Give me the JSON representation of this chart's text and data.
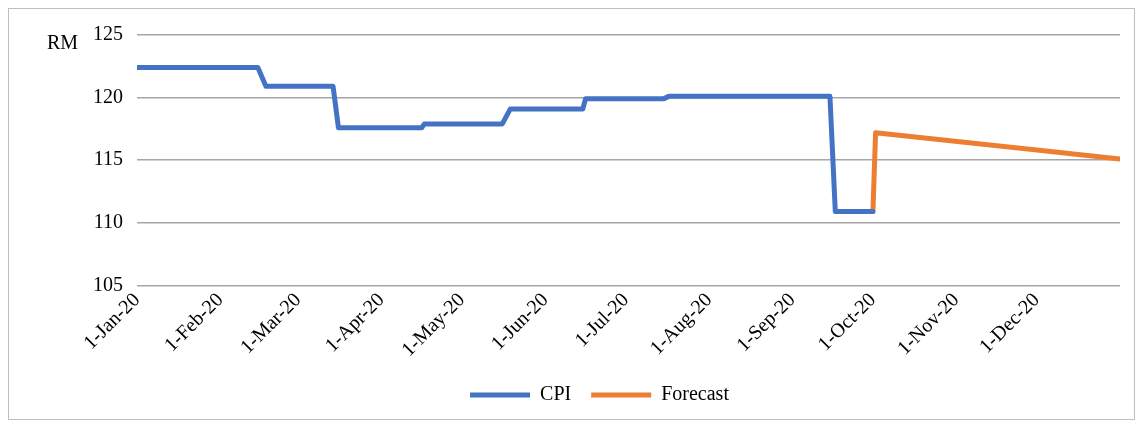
{
  "chart_data": {
    "type": "line",
    "ylabel": "RM",
    "xlim": [
      "2020-01-01",
      "2021-01-01"
    ],
    "xticks": [
      {
        "value": "2020-01-01",
        "label": "1-Jan-20"
      },
      {
        "value": "2020-02-01",
        "label": "1-Feb-20"
      },
      {
        "value": "2020-03-01",
        "label": "1-Mar-20"
      },
      {
        "value": "2020-04-01",
        "label": "1-Apr-20"
      },
      {
        "value": "2020-05-01",
        "label": "1-May-20"
      },
      {
        "value": "2020-06-01",
        "label": "1-Jun-20"
      },
      {
        "value": "2020-07-01",
        "label": "1-Jul-20"
      },
      {
        "value": "2020-08-01",
        "label": "1-Aug-20"
      },
      {
        "value": "2020-09-01",
        "label": "1-Sep-20"
      },
      {
        "value": "2020-10-01",
        "label": "1-Oct-20"
      },
      {
        "value": "2020-11-01",
        "label": "1-Nov-20"
      },
      {
        "value": "2020-12-01",
        "label": "1-Dec-20"
      }
    ],
    "ylim": [
      105,
      125
    ],
    "yticks": [
      105,
      110,
      115,
      120,
      125
    ],
    "grid": "y",
    "legend": "bottom",
    "marker": "none",
    "line_style": "solid",
    "series": [
      {
        "name": "CPI",
        "color": "#4472c4",
        "x": [
          "2020-01-01",
          "2020-02-15",
          "2020-02-18",
          "2020-03-14",
          "2020-03-16",
          "2020-04-16",
          "2020-04-17",
          "2020-05-16",
          "2020-05-19",
          "2020-06-15",
          "2020-06-16",
          "2020-07-15",
          "2020-07-17",
          "2020-09-15",
          "2020-09-17",
          "2020-10-01"
        ],
        "values": [
          122.4,
          122.4,
          120.9,
          120.9,
          117.6,
          117.6,
          117.9,
          117.9,
          119.1,
          119.1,
          119.9,
          119.9,
          120.1,
          120.1,
          110.9,
          110.9
        ]
      },
      {
        "name": "Forecast",
        "color": "#ed7d31",
        "x": [
          "2020-10-01",
          "2020-10-02",
          "2021-01-01"
        ],
        "values": [
          110.9,
          117.2,
          115.1
        ]
      }
    ]
  }
}
